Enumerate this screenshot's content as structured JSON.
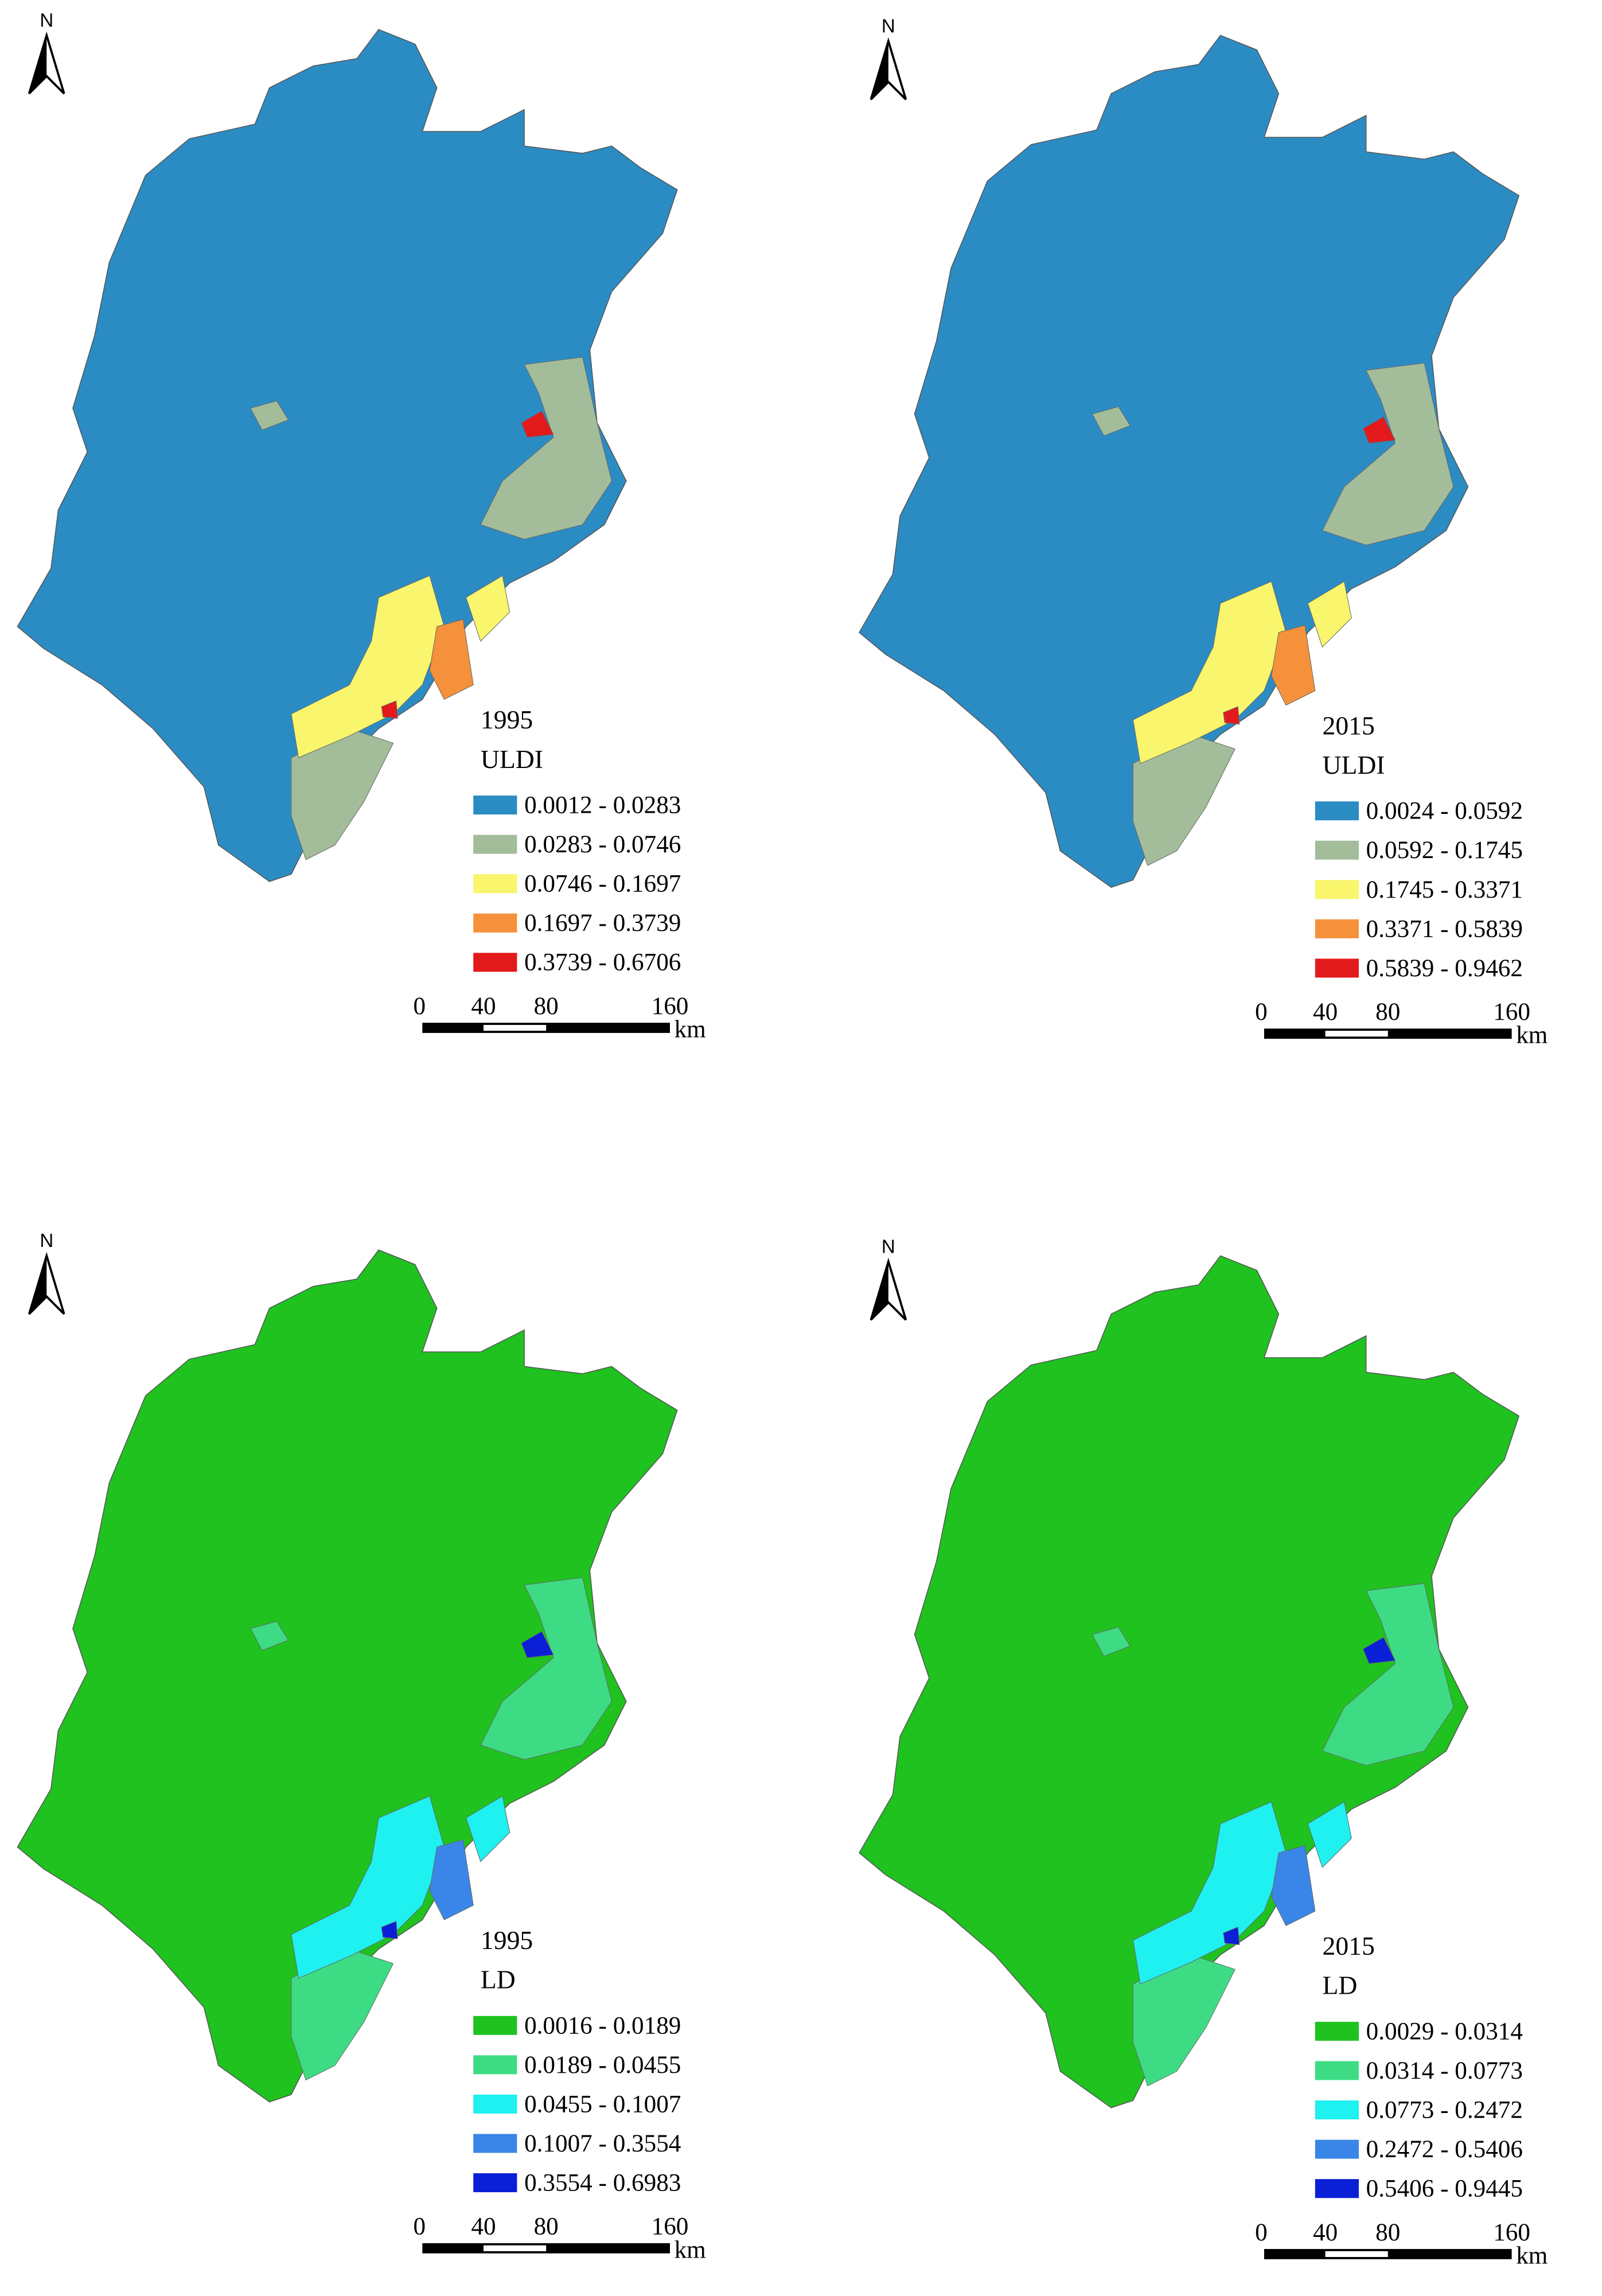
{
  "panels": [
    {
      "north": "N",
      "year": "1995",
      "index": "ULDI",
      "legend": [
        {
          "label": "0.0012 - 0.0283",
          "color": "#2b8cc4"
        },
        {
          "label": "0.0283 - 0.0746",
          "color": "#a3bd9b"
        },
        {
          "label": "0.0746 - 0.1697",
          "color": "#f9f56c"
        },
        {
          "label": "0.1697 - 0.3739",
          "color": "#f5913a"
        },
        {
          "label": "0.3739 - 0.6706",
          "color": "#e31a1c"
        }
      ],
      "scale": {
        "labels": [
          "0",
          "40",
          "80",
          "160"
        ],
        "unit": "km"
      }
    },
    {
      "north": "N",
      "year": "2015",
      "index": "ULDI",
      "legend": [
        {
          "label": "0.0024 - 0.0592",
          "color": "#2b8cc4"
        },
        {
          "label": "0.0592 - 0.1745",
          "color": "#a3bd9b"
        },
        {
          "label": "0.1745 - 0.3371",
          "color": "#f9f56c"
        },
        {
          "label": "0.3371 - 0.5839",
          "color": "#f5913a"
        },
        {
          "label": "0.5839 - 0.9462",
          "color": "#e31a1c"
        }
      ],
      "scale": {
        "labels": [
          "0",
          "40",
          "80",
          "160"
        ],
        "unit": "km"
      }
    },
    {
      "north": "N",
      "year": "1995",
      "index": "LD",
      "legend": [
        {
          "label": "0.0016 - 0.0189",
          "color": "#1fc21f"
        },
        {
          "label": "0.0189 - 0.0455",
          "color": "#3ddc84"
        },
        {
          "label": "0.0455 - 0.1007",
          "color": "#1ff0f0"
        },
        {
          "label": "0.1007 - 0.3554",
          "color": "#3a86e8"
        },
        {
          "label": "0.3554 - 0.6983",
          "color": "#0a1fd6"
        }
      ],
      "scale": {
        "labels": [
          "0",
          "40",
          "80",
          "160"
        ],
        "unit": "km"
      }
    },
    {
      "north": "N",
      "year": "2015",
      "index": "LD",
      "legend": [
        {
          "label": "0.0029 - 0.0314",
          "color": "#1fc21f"
        },
        {
          "label": "0.0314 - 0.0773",
          "color": "#3ddc84"
        },
        {
          "label": "0.0773 - 0.2472",
          "color": "#1ff0f0"
        },
        {
          "label": "0.2472 - 0.5406",
          "color": "#3a86e8"
        },
        {
          "label": "0.5406 - 0.9445",
          "color": "#0a1fd6"
        }
      ],
      "scale": {
        "labels": [
          "0",
          "40",
          "80",
          "160"
        ],
        "unit": "km"
      }
    }
  ]
}
